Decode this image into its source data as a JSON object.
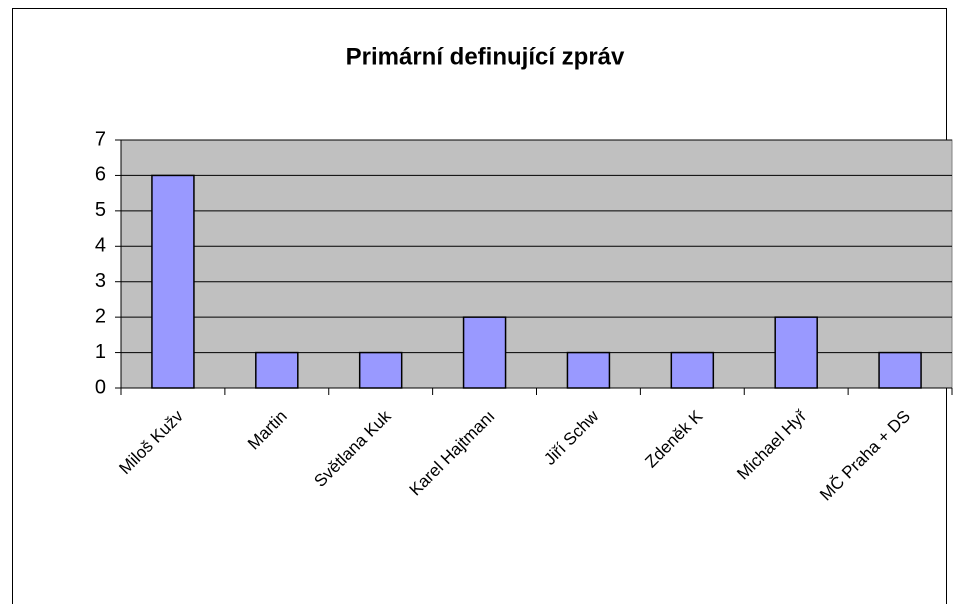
{
  "chart_data": {
    "type": "bar",
    "title": "Primární definující zpráv",
    "categories": [
      "Miloš Kužv",
      "Martin",
      "Světlana Kuk",
      "Karel Hajtmanı",
      "Jiří Schw",
      "Zdeněk K",
      "Michael Hyř",
      "MČ Praha + DS"
    ],
    "values": [
      6,
      1,
      1,
      2,
      1,
      1,
      2,
      1
    ],
    "color": "#9999ff",
    "ylim": [
      0,
      7
    ],
    "yticks": [
      0,
      1,
      2,
      3,
      4,
      5,
      6,
      7
    ],
    "grid": true,
    "plot_background": "#c0c0c0"
  }
}
